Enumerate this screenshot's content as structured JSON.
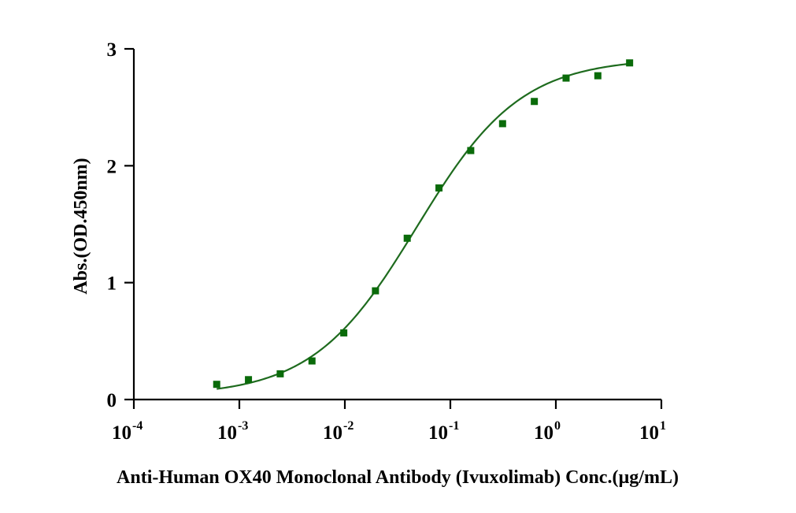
{
  "chart_data": {
    "type": "scatter",
    "xlabel": "Anti-Human OX40 Monoclonal Antibody (Ivuxolimab)  Conc.(µg/mL)",
    "ylabel": "Abs.(OD.450nm)",
    "x_scale": "log10",
    "xlim": [
      0.0001,
      10
    ],
    "ylim": [
      0,
      3
    ],
    "x_ticks": [
      {
        "base": "10",
        "exp": "-4",
        "value": 0.0001
      },
      {
        "base": "10",
        "exp": "-3",
        "value": 0.001
      },
      {
        "base": "10",
        "exp": "-2",
        "value": 0.01
      },
      {
        "base": "10",
        "exp": "-1",
        "value": 0.1
      },
      {
        "base": "10",
        "exp": "0",
        "value": 1
      },
      {
        "base": "10",
        "exp": "1",
        "value": 10
      }
    ],
    "y_ticks": [
      {
        "label": "0",
        "value": 0
      },
      {
        "label": "1",
        "value": 1
      },
      {
        "label": "2",
        "value": 2
      },
      {
        "label": "3",
        "value": 3
      }
    ],
    "grid": false,
    "marker": "square",
    "color": "#0a6b0a",
    "line_color": "#1e6b1e",
    "points": [
      {
        "x": 0.00061,
        "y": 0.13
      },
      {
        "x": 0.00122,
        "y": 0.17
      },
      {
        "x": 0.00244,
        "y": 0.22
      },
      {
        "x": 0.00488,
        "y": 0.33
      },
      {
        "x": 0.00977,
        "y": 0.57
      },
      {
        "x": 0.0195,
        "y": 0.93
      },
      {
        "x": 0.039,
        "y": 1.38
      },
      {
        "x": 0.078,
        "y": 1.81
      },
      {
        "x": 0.156,
        "y": 2.13
      },
      {
        "x": 0.3125,
        "y": 2.36
      },
      {
        "x": 0.625,
        "y": 2.55
      },
      {
        "x": 1.25,
        "y": 2.75
      },
      {
        "x": 2.5,
        "y": 2.77
      },
      {
        "x": 5.0,
        "y": 2.88
      }
    ],
    "fit_curve": {
      "model": "4PL",
      "bottom": 0.03,
      "top": 2.92,
      "ec50": 0.048,
      "hill": 0.88,
      "x_range": [
        0.00061,
        5.0
      ]
    }
  }
}
